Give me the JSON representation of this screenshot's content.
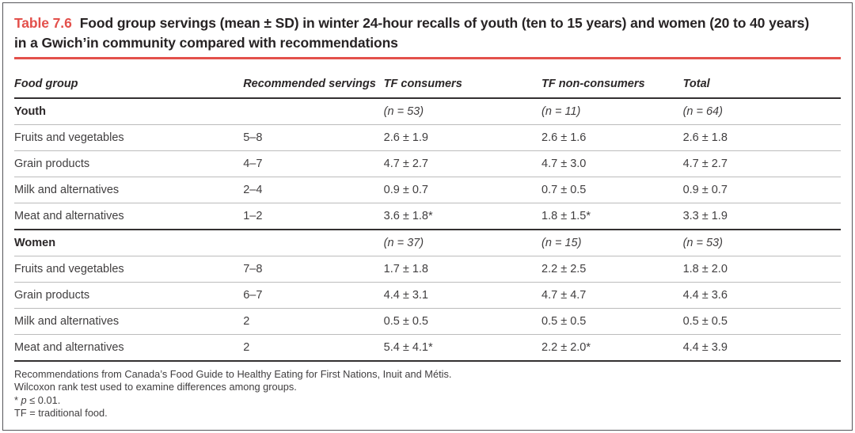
{
  "accent_color": "#e3504b",
  "table": {
    "label": "Table 7.6",
    "title": "Food group servings (mean ± SD) in winter 24-hour recalls of youth (ten to 15 years) and women (20 to 40 years) in a Gwich’in community compared with recommendations",
    "columns": {
      "food_group": "Food group",
      "recommended_servings": "Recommended servings",
      "tf_consumers": "TF consumers",
      "tf_non_consumers": "TF non-consumers",
      "total": "Total"
    },
    "sections": [
      {
        "name": "Youth",
        "n_values": [
          "(n = 53)",
          "(n = 11)",
          "(n = 64)"
        ],
        "rows": [
          [
            "Fruits and vegetables",
            "5–8",
            "2.6 ± 1.9",
            "2.6 ± 1.6",
            "2.6 ± 1.8"
          ],
          [
            "Grain products",
            "4–7",
            "4.7 ± 2.7",
            "4.7 ± 3.0",
            "4.7 ± 2.7"
          ],
          [
            "Milk and alternatives",
            "2–4",
            "0.9 ± 0.7",
            "0.7 ± 0.5",
            "0.9 ± 0.7"
          ],
          [
            "Meat and alternatives",
            "1–2",
            "3.6 ± 1.8*",
            "1.8 ± 1.5*",
            "3.3 ± 1.9"
          ]
        ]
      },
      {
        "name": "Women",
        "n_values": [
          "(n = 37)",
          "(n = 15)",
          "(n = 53)"
        ],
        "rows": [
          [
            "Fruits and vegetables",
            "7–8",
            "1.7 ± 1.8",
            "2.2 ± 2.5",
            "1.8 ± 2.0"
          ],
          [
            "Grain products",
            "6–7",
            "4.4 ± 3.1",
            "4.7 ± 4.7",
            "4.4 ± 3.6"
          ],
          [
            "Milk and alternatives",
            "2",
            "0.5 ± 0.5",
            "0.5 ± 0.5",
            "0.5 ± 0.5"
          ],
          [
            "Meat and alternatives",
            "2",
            "5.4 ± 4.1*",
            "2.2 ± 2.0*",
            "4.4 ± 3.9"
          ]
        ]
      }
    ],
    "footnotes": {
      "line1": "Recommendations from Canada’s Food Guide to Healthy Eating for First Nations, Inuit and Métis.",
      "line2": "Wilcoxon rank test used to examine differences among groups.",
      "line3_prefix": "* ",
      "line3_p": "p",
      "line3_rest": " ≤ 0.01.",
      "line4": "TF = traditional food."
    }
  }
}
